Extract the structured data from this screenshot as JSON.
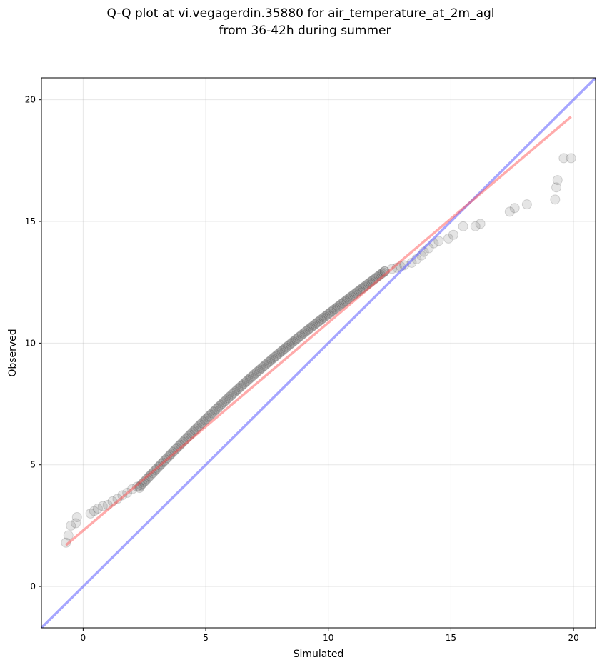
{
  "chart_data": {
    "type": "scatter",
    "title_line1": "Q-Q plot at vi.vegagerdin.35880 for air_temperature_at_2m_agl",
    "title_line2": "from 36-42h during summer",
    "xlabel": "Simulated",
    "ylabel": "Observed",
    "xlim": [
      -1.7,
      20.9
    ],
    "ylim": [
      -1.7,
      20.9
    ],
    "xticks": [
      0,
      5,
      10,
      15,
      20
    ],
    "yticks": [
      0,
      5,
      10,
      15,
      20
    ],
    "grid": true,
    "point_color": "#333333",
    "identity_line": {
      "color": "#6a6aff",
      "x": [
        -1.7,
        20.9
      ],
      "y": [
        -1.7,
        20.9
      ]
    },
    "fit_line": {
      "color": "#ff4444",
      "x": [
        -0.7,
        19.9
      ],
      "y": [
        1.7,
        19.3
      ]
    },
    "outlier_points": [
      [
        -0.7,
        1.8
      ],
      [
        -0.6,
        2.1
      ],
      [
        -0.5,
        2.5
      ],
      [
        -0.3,
        2.6
      ],
      [
        -0.25,
        2.85
      ],
      [
        0.3,
        3.0
      ],
      [
        0.45,
        3.1
      ],
      [
        0.6,
        3.2
      ],
      [
        0.8,
        3.3
      ],
      [
        1.0,
        3.35
      ],
      [
        1.2,
        3.5
      ],
      [
        1.4,
        3.6
      ],
      [
        1.6,
        3.75
      ],
      [
        1.8,
        3.85
      ],
      [
        2.0,
        4.0
      ],
      [
        2.2,
        4.1
      ],
      [
        2.3,
        4.05
      ],
      [
        12.3,
        12.95
      ],
      [
        12.6,
        13.05
      ],
      [
        12.8,
        13.1
      ],
      [
        12.95,
        13.15
      ],
      [
        13.1,
        13.2
      ],
      [
        13.4,
        13.3
      ],
      [
        13.6,
        13.45
      ],
      [
        13.8,
        13.6
      ],
      [
        13.9,
        13.75
      ],
      [
        14.1,
        13.9
      ],
      [
        14.3,
        14.1
      ],
      [
        14.5,
        14.2
      ],
      [
        14.9,
        14.3
      ],
      [
        15.1,
        14.45
      ],
      [
        15.5,
        14.8
      ],
      [
        16.0,
        14.8
      ],
      [
        16.2,
        14.9
      ],
      [
        17.4,
        15.4
      ],
      [
        17.6,
        15.55
      ],
      [
        18.1,
        15.7
      ],
      [
        19.25,
        15.9
      ],
      [
        19.3,
        16.4
      ],
      [
        19.35,
        16.7
      ],
      [
        19.6,
        17.6
      ],
      [
        19.9,
        17.6
      ]
    ],
    "bulk_points": {
      "x_range": [
        2.3,
        12.3
      ],
      "y_range": [
        4.1,
        12.95
      ],
      "count": 170
    }
  }
}
